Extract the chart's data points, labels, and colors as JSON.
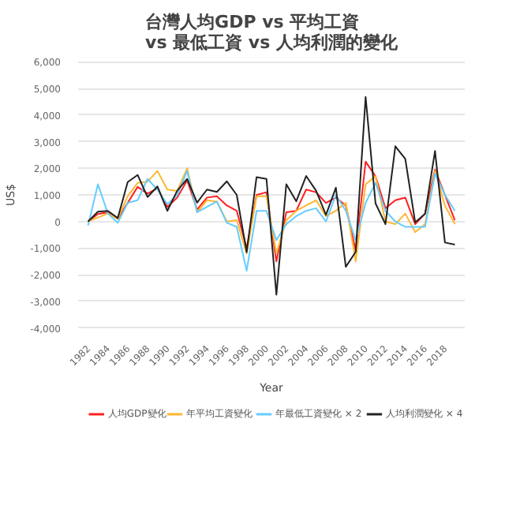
{
  "chart_data": {
    "type": "line",
    "title": "台灣人均GDP vs 平均工資\nvs 最低工資 vs 人均利潤的變化",
    "xlabel": "Year",
    "ylabel": "US$",
    "x": [
      1982,
      1983,
      1984,
      1985,
      1986,
      1987,
      1988,
      1989,
      1990,
      1991,
      1992,
      1993,
      1994,
      1995,
      1996,
      1997,
      1998,
      1999,
      2000,
      2001,
      2002,
      2003,
      2004,
      2005,
      2006,
      2007,
      2008,
      2009,
      2010,
      2011,
      2012,
      2013,
      2014,
      2015,
      2016,
      2017,
      2018,
      2019
    ],
    "series": [
      {
        "name": "人均GDP變化",
        "color": "#ff2020",
        "values": [
          0,
          280,
          350,
          100,
          700,
          1300,
          1050,
          1250,
          550,
          900,
          1550,
          450,
          900,
          950,
          600,
          400,
          -1000,
          1000,
          1100,
          -1500,
          350,
          400,
          1200,
          1100,
          700,
          900,
          600,
          -1100,
          2250,
          1700,
          500,
          800,
          900,
          -100,
          300,
          1950,
          1000,
          50
        ]
      },
      {
        "name": "年平均工資變化",
        "color": "#ffb732",
        "values": [
          0,
          150,
          300,
          100,
          950,
          1450,
          1500,
          1900,
          1200,
          1150,
          2000,
          350,
          800,
          750,
          0,
          50,
          -1200,
          950,
          950,
          -1200,
          50,
          400,
          600,
          800,
          200,
          400,
          700,
          -1500,
          1400,
          1700,
          0,
          -100,
          300,
          -400,
          -100,
          1900,
          600,
          -100
        ]
      },
      {
        "name": "年最低工資變化 × 2",
        "color": "#66ccff",
        "values": [
          -150,
          1400,
          300,
          -50,
          700,
          800,
          1600,
          1200,
          650,
          1000,
          1900,
          350,
          550,
          750,
          -50,
          -200,
          -1850,
          400,
          400,
          -700,
          -100,
          200,
          400,
          500,
          0,
          1000,
          400,
          -700,
          700,
          1450,
          400,
          0,
          -200,
          -200,
          -200,
          1800,
          1000,
          400
        ]
      },
      {
        "name": "人均利潤變化 × 4",
        "color": "#222222",
        "values": [
          0,
          370,
          400,
          130,
          1480,
          1750,
          920,
          1320,
          400,
          1160,
          1600,
          710,
          1200,
          1110,
          1510,
          1000,
          -1150,
          1670,
          1600,
          -2750,
          1400,
          760,
          1710,
          1160,
          250,
          1270,
          -1700,
          -1140,
          4680,
          680,
          -100,
          2830,
          2350,
          -30,
          290,
          2650,
          -790,
          -870
        ]
      }
    ],
    "xlim": [
      1981,
      2020
    ],
    "xticks": [
      1982,
      1984,
      1986,
      1988,
      1990,
      1992,
      1994,
      1996,
      1998,
      2000,
      2002,
      2004,
      2006,
      2008,
      2010,
      2012,
      2014,
      2016,
      2018
    ],
    "ylim": [
      -4000,
      6000
    ],
    "yticks": [
      {
        "value": -4000,
        "label": "-4,000"
      },
      {
        "value": -3000,
        "label": "-3,000"
      },
      {
        "value": -2000,
        "label": "-2,000"
      },
      {
        "value": -1000,
        "label": "-1,000"
      },
      0,
      {
        "value": 1000,
        "label": "1,000"
      },
      {
        "value": 2000,
        "label": "2,000"
      },
      {
        "value": 3000,
        "label": "3,000"
      },
      {
        "value": 4000,
        "label": "4,000"
      },
      {
        "value": 5000,
        "label": "5,000"
      },
      {
        "value": 6000,
        "label": "6,000"
      }
    ],
    "grid": "y",
    "legend": "bottom",
    "marker": "none",
    "line_style": "solid"
  }
}
